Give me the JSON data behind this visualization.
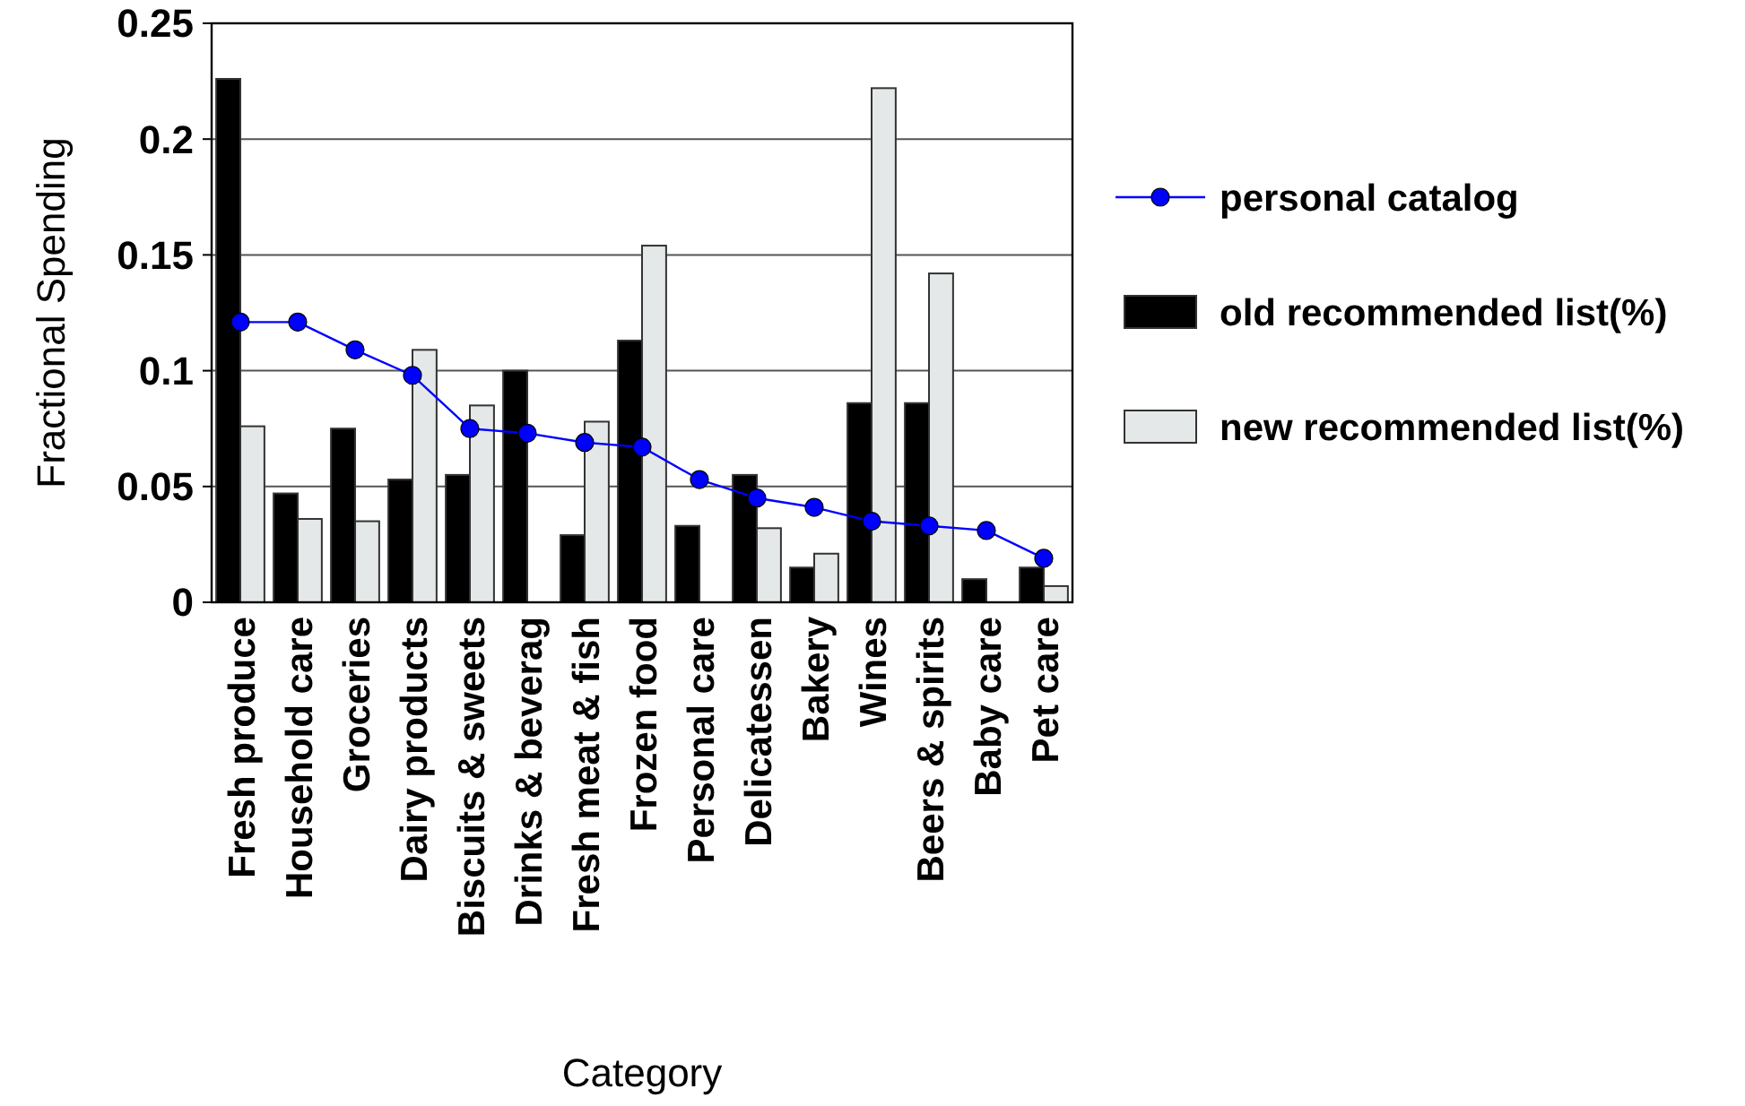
{
  "chart_data": {
    "type": "bar",
    "xlabel": "Category",
    "ylabel": "Fractional Spending",
    "categories": [
      "Fresh produce",
      "Household care",
      "Groceries",
      "Dairy products",
      "Biscuits & sweets",
      "Drinks & beverag",
      "Fresh meat & fish",
      "Frozen food",
      "Personal care",
      "Delicatessen",
      "Bakery",
      "Wines",
      "Beers & spirits",
      "Baby care",
      "Pet care"
    ],
    "series": [
      {
        "name": "personal catalog",
        "type": "line",
        "color": "#0000ff",
        "marker": "circle",
        "values": [
          0.121,
          0.121,
          0.109,
          0.098,
          0.075,
          0.073,
          0.069,
          0.067,
          0.053,
          0.045,
          0.041,
          0.035,
          0.033,
          0.031,
          0.019
        ]
      },
      {
        "name": "old recommended list(%)",
        "color": "#000000",
        "values": [
          0.226,
          0.047,
          0.075,
          0.053,
          0.055,
          0.1,
          0.029,
          0.113,
          0.033,
          0.055,
          0.015,
          0.086,
          0.086,
          0.01,
          0.015
        ]
      },
      {
        "name": "new recommended list(%)",
        "color": "#e4e8e8",
        "values": [
          0.076,
          0.036,
          0.035,
          0.109,
          0.085,
          0,
          0.078,
          0.154,
          0,
          0.032,
          0.021,
          0.222,
          0.142,
          0,
          0.007
        ]
      }
    ],
    "ylim": [
      0,
      0.25
    ],
    "yticks": [
      0,
      0.05,
      0.1,
      0.15,
      0.2,
      0.25
    ],
    "grid": "y",
    "legend": "right"
  }
}
